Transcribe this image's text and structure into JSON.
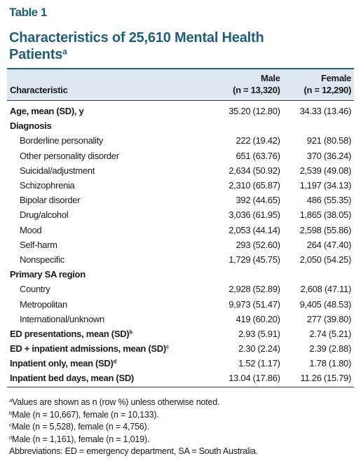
{
  "header": {
    "label": "Table 1",
    "title": "Characteristics of 25,610 Mental Health Patients",
    "title_note": "a"
  },
  "table": {
    "columns": [
      {
        "lines": [
          "Characteristic"
        ]
      },
      {
        "lines": [
          "Male",
          "(n = 13,320)"
        ]
      },
      {
        "lines": [
          "Female",
          "(n = 12,290)"
        ]
      }
    ],
    "rows": [
      {
        "label": "Age, mean (SD), y",
        "cells": [
          "35.20 (12.80)",
          "34.33 (13.46)"
        ]
      },
      {
        "label": "Diagnosis",
        "items": [
          {
            "label": "Borderline personality",
            "cells": [
              "222 (19.42)",
              "921 (80.58)"
            ]
          },
          {
            "label": "Other personality disorder",
            "cells": [
              "651 (63.76)",
              "370 (36.24)"
            ]
          },
          {
            "label": "Suicidal/adjustment",
            "cells": [
              "2,634 (50.92)",
              "2,539 (49.08)"
            ]
          },
          {
            "label": "Schizophrenia",
            "cells": [
              "2,310 (65.87)",
              "1,197 (34.13)"
            ]
          },
          {
            "label": "Bipolar disorder",
            "cells": [
              "392 (44.65)",
              "486 (55.35)"
            ]
          },
          {
            "label": "Drug/alcohol",
            "cells": [
              "3,036 (61.95)",
              "1,865 (38.05)"
            ]
          },
          {
            "label": "Mood",
            "cells": [
              "2,053 (44.14)",
              "2,598 (55.86)"
            ]
          },
          {
            "label": "Self-harm",
            "cells": [
              "293 (52.60)",
              "264 (47.40)"
            ]
          },
          {
            "label": "Nonspecific",
            "cells": [
              "1,729 (45.75)",
              "2,050 (54.25)"
            ]
          }
        ]
      },
      {
        "label": "Primary SA region",
        "items": [
          {
            "label": "Country",
            "cells": [
              "2,928 (52.89)",
              "2,608 (47.11)"
            ]
          },
          {
            "label": "Metropolitan",
            "cells": [
              "9,973 (51.47)",
              "9,405 (48.53)"
            ]
          },
          {
            "label": "International/unknown",
            "cells": [
              "419 (60.20)",
              "277 (39.80)"
            ]
          }
        ]
      },
      {
        "label": "ED presentations, mean (SD)",
        "note": "b",
        "cells": [
          "2.93 (5.91)",
          "2.74 (5.21)"
        ]
      },
      {
        "label": "ED + inpatient admissions, mean (SD)",
        "note": "c",
        "cells": [
          "2.30 (2.24)",
          "2.39 (2.88)"
        ]
      },
      {
        "label": "Inpatient only, mean (SD)",
        "note": "d",
        "cells": [
          "1.52 (1.17)",
          "1.78 (1.80)"
        ]
      },
      {
        "label": "Inpatient bed days, mean (SD)",
        "cells": [
          "13.04 (17.86)",
          "11.26 (15.79)"
        ]
      }
    ]
  },
  "footnotes": [
    {
      "mark": "a",
      "text": "Values are shown as n (row %) unless otherwise noted."
    },
    {
      "mark": "b",
      "text": "Male (n = 10,667), female (n = 10,133)."
    },
    {
      "mark": "c",
      "text": "Male (n = 5,528), female (n = 4,756)."
    },
    {
      "mark": "d",
      "text": "Male (n = 1,161), female (n = 1,019)."
    },
    {
      "text": "Abbreviations: ED = emergency department, SA = South Australia."
    }
  ]
}
